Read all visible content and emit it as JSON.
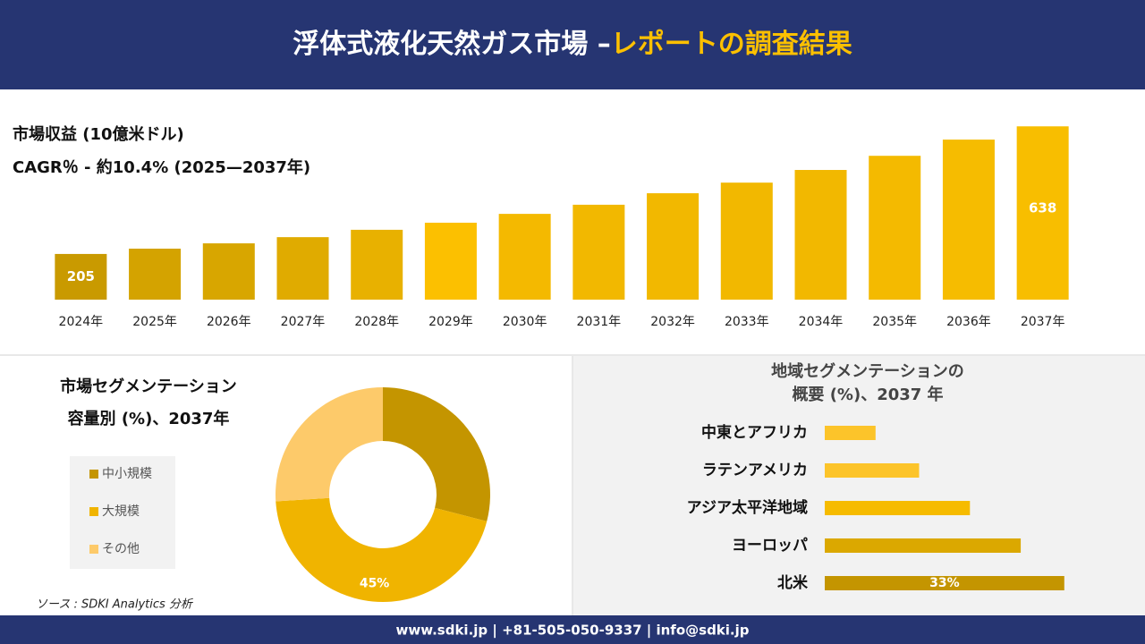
{
  "header": {
    "title": "浮体式液化天然ガス市場 –",
    "title_highlight": "レポートの調査結果"
  },
  "chart_data": [
    {
      "type": "bar",
      "title": "市場収益 (10億米ドル)",
      "subtitle": "CAGR％ - 約10.4% (2025—2037年)",
      "categories": [
        "2024年",
        "2025年",
        "2026年",
        "2027年",
        "2028年",
        "2029年",
        "2030年",
        "2031年",
        "2032年",
        "2033年",
        "2034年",
        "2035年",
        "2036年",
        "2037年"
      ],
      "values": [
        205,
        223,
        241,
        262,
        287,
        311,
        341,
        372,
        411,
        447,
        490,
        538,
        593,
        638
      ],
      "value_labels": [
        "205",
        null,
        null,
        null,
        null,
        null,
        null,
        null,
        null,
        null,
        null,
        null,
        null,
        "638"
      ],
      "colors": [
        "#c99a00",
        "#d4a300",
        "#d8a600",
        "#e0ab00",
        "#e8b100",
        "#fcc000",
        "#f4b900",
        "#f2b800",
        "#f2b800",
        "#f2b800",
        "#f2b800",
        "#f4ba00",
        "#f6bc00",
        "#f8be00"
      ],
      "ylim": [
        50,
        660
      ]
    },
    {
      "type": "donut",
      "title": "市場セグメンテーション",
      "subtitle": "容量別 (%)、2037年",
      "categories": [
        "中小規模",
        "大規模",
        "その他"
      ],
      "values": [
        29,
        45,
        26
      ],
      "value_labels": [
        null,
        "45%",
        null
      ],
      "colors": [
        "#c49500",
        "#f0b400",
        "#fdca6a"
      ]
    },
    {
      "type": "hbar",
      "title": "地域セグメンテーションの",
      "subtitle": "概要 (%)、2037 年",
      "categories": [
        "中東とアフリカ",
        "ラテンアメリカ",
        "アジア太平洋地域",
        "ヨーロッパ",
        "北米"
      ],
      "values": [
        7,
        13,
        20,
        27,
        33
      ],
      "value_labels": [
        null,
        null,
        null,
        null,
        "33%"
      ],
      "colors": [
        "#fcc42a",
        "#fcc42a",
        "#f6bb00",
        "#dba800",
        "#c49500"
      ],
      "xlim": [
        0,
        35
      ]
    }
  ],
  "source": "ソース : SDKI Analytics 分析",
  "footer": "www.sdki.jp | +81-505-050-9337 | info@sdki.jp"
}
